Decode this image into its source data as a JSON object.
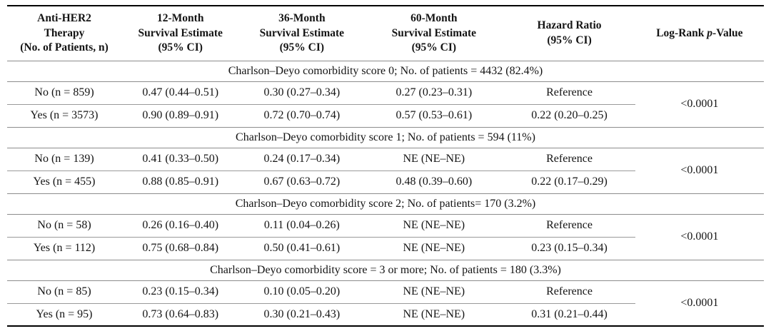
{
  "table": {
    "columns": [
      {
        "label": "Anti-HER2\nTherapy\n(No. of Patients, n)"
      },
      {
        "label": "12-Month\nSurvival Estimate\n(95% CI)"
      },
      {
        "label": "36-Month\nSurvival Estimate\n(95% CI)"
      },
      {
        "label": "60-Month\nSurvival Estimate\n(95% CI)"
      },
      {
        "label": "Hazard Ratio\n(95% CI)"
      },
      {
        "label_prefix": "Log-Rank ",
        "label_italic": "p",
        "label_suffix": "-Value"
      }
    ],
    "sections": [
      {
        "header": "Charlson–Deyo comorbidity score 0; No. of patients = 4432 (82.4%)",
        "p_value": "<0.0001",
        "rows": [
          {
            "therapy": "No (n = 859)",
            "m12": "0.47 (0.44–0.51)",
            "m36": "0.30 (0.27–0.34)",
            "m60": "0.27 (0.23–0.31)",
            "hr": "Reference"
          },
          {
            "therapy": "Yes (n = 3573)",
            "m12": "0.90 (0.89–0.91)",
            "m36": "0.72 (0.70–0.74)",
            "m60": "0.57 (0.53–0.61)",
            "hr": "0.22 (0.20–0.25)"
          }
        ]
      },
      {
        "header": "Charlson–Deyo comorbidity score 1; No. of patients = 594 (11%)",
        "p_value": "<0.0001",
        "rows": [
          {
            "therapy": "No (n = 139)",
            "m12": "0.41 (0.33–0.50)",
            "m36": "0.24 (0.17–0.34)",
            "m60": "NE (NE–NE)",
            "hr": "Reference"
          },
          {
            "therapy": "Yes (n = 455)",
            "m12": "0.88 (0.85–0.91)",
            "m36": "0.67 (0.63–0.72)",
            "m60": "0.48 (0.39–0.60)",
            "hr": "0.22 (0.17–0.29)"
          }
        ]
      },
      {
        "header": "Charlson–Deyo comorbidity score 2; No. of patients= 170 (3.2%)",
        "p_value": "<0.0001",
        "rows": [
          {
            "therapy": "No (n = 58)",
            "m12": "0.26 (0.16–0.40)",
            "m36": "0.11 (0.04–0.26)",
            "m60": "NE (NE–NE)",
            "hr": "Reference"
          },
          {
            "therapy": "Yes (n = 112)",
            "m12": "0.75 (0.68–0.84)",
            "m36": "0.50 (0.41–0.61)",
            "m60": "NE (NE–NE)",
            "hr": "0.23 (0.15–0.34)"
          }
        ]
      },
      {
        "header": "Charlson–Deyo comorbidity score = 3 or more; No. of patients = 180 (3.3%)",
        "p_value": "<0.0001",
        "rows": [
          {
            "therapy": "No (n = 85)",
            "m12": "0.23 (0.15–0.34)",
            "m36": "0.10 (0.05–0.20)",
            "m60": "NE (NE–NE)",
            "hr": "Reference"
          },
          {
            "therapy": "Yes (n = 95)",
            "m12": "0.73 (0.64–0.83)",
            "m36": "0.30 (0.21–0.43)",
            "m60": "NE (NE–NE)",
            "hr": "0.31 (0.21–0.44)"
          }
        ]
      }
    ]
  }
}
